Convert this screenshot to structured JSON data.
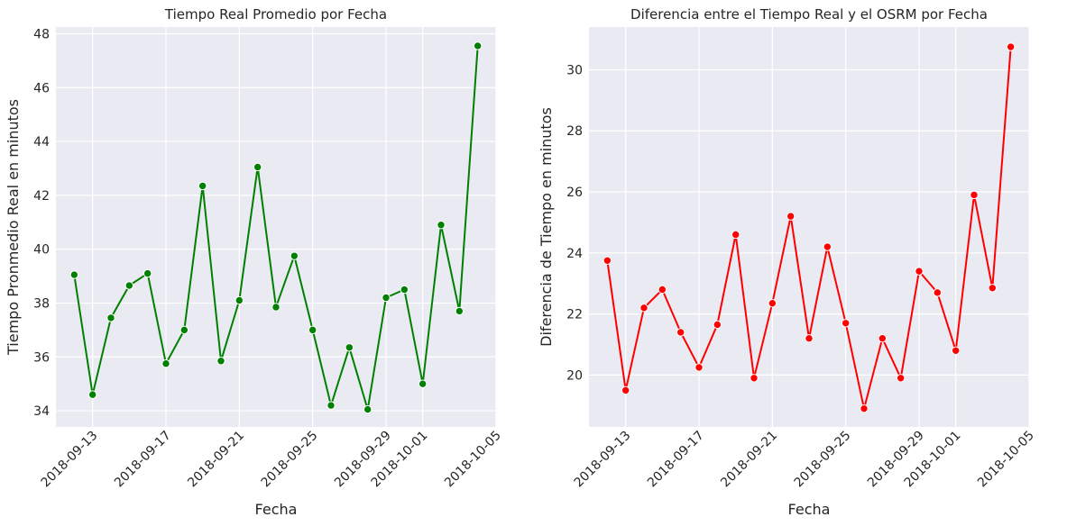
{
  "chart_data": [
    {
      "type": "line",
      "title": "Tiempo Real Promedio por Fecha",
      "xlabel": "Fecha",
      "ylabel": "Tiempo Pronmedio Real en minutos",
      "color": "#008000",
      "marker": "o",
      "grid": true,
      "background": "#eaeaf2",
      "ylim": [
        33.4,
        48.25
      ],
      "xlim": [
        "2018-09-11",
        "2018-10-05"
      ],
      "x_ticks": [
        "2018-09-13",
        "2018-09-17",
        "2018-09-21",
        "2018-09-25",
        "2018-09-29",
        "2018-10-01",
        "2018-10-05"
      ],
      "y_ticks": [
        34,
        36,
        38,
        40,
        42,
        44,
        46,
        48
      ],
      "x": [
        "2018-09-12",
        "2018-09-13",
        "2018-09-14",
        "2018-09-15",
        "2018-09-16",
        "2018-09-17",
        "2018-09-18",
        "2018-09-19",
        "2018-09-20",
        "2018-09-21",
        "2018-09-22",
        "2018-09-23",
        "2018-09-24",
        "2018-09-25",
        "2018-09-26",
        "2018-09-27",
        "2018-09-28",
        "2018-09-29",
        "2018-09-30",
        "2018-10-01",
        "2018-10-02",
        "2018-10-03",
        "2018-10-04"
      ],
      "values": [
        39.05,
        34.6,
        37.45,
        38.65,
        39.1,
        35.75,
        37.0,
        42.35,
        35.85,
        38.1,
        43.05,
        37.85,
        39.75,
        37.0,
        34.2,
        36.35,
        34.05,
        38.2,
        38.5,
        35.0,
        40.9,
        37.7,
        47.55
      ]
    },
    {
      "type": "line",
      "title": "Diferencia entre el Tiempo Real y el OSRM por Fecha",
      "xlabel": "Fecha",
      "ylabel": "Diferencia de Tiempo en minutos",
      "color": "#ff0000",
      "marker": "o",
      "grid": true,
      "background": "#eaeaf2",
      "ylim": [
        18.3,
        31.4
      ],
      "xlim": [
        "2018-09-11",
        "2018-10-05"
      ],
      "x_ticks": [
        "2018-09-13",
        "2018-09-17",
        "2018-09-21",
        "2018-09-25",
        "2018-09-29",
        "2018-10-01",
        "2018-10-05"
      ],
      "y_ticks": [
        20,
        22,
        24,
        26,
        28,
        30
      ],
      "x": [
        "2018-09-12",
        "2018-09-13",
        "2018-09-14",
        "2018-09-15",
        "2018-09-16",
        "2018-09-17",
        "2018-09-18",
        "2018-09-19",
        "2018-09-20",
        "2018-09-21",
        "2018-09-22",
        "2018-09-23",
        "2018-09-24",
        "2018-09-25",
        "2018-09-26",
        "2018-09-27",
        "2018-09-28",
        "2018-09-29",
        "2018-09-30",
        "2018-10-01",
        "2018-10-02",
        "2018-10-03",
        "2018-10-04"
      ],
      "values": [
        23.75,
        19.5,
        22.2,
        22.8,
        21.4,
        20.25,
        21.65,
        24.6,
        19.9,
        22.35,
        25.2,
        21.2,
        24.2,
        21.7,
        18.9,
        21.2,
        19.9,
        23.4,
        22.7,
        20.8,
        25.9,
        22.85,
        30.75
      ]
    }
  ]
}
